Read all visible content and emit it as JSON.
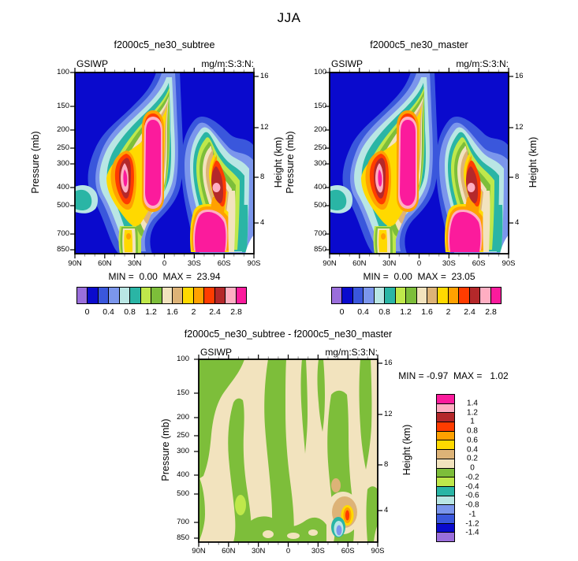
{
  "figure": {
    "title": "JJA"
  },
  "palette": {
    "colors": [
      "#9A6EDB",
      "#0A0ACD",
      "#3A57DC",
      "#7B96EC",
      "#B9E6E4",
      "#2AB5A5",
      "#BFE84B",
      "#7DBE3A",
      "#F2E3BE",
      "#DDB377",
      "#FFD900",
      "#FFA100",
      "#FF3C00",
      "#B4282A",
      "#FFAEC2",
      "#FB1B9C"
    ],
    "top_colorbar_labels": [
      "0",
      "0.4",
      "0.8",
      "1.2",
      "1.6",
      "2",
      "2.4",
      "2.8"
    ],
    "diff_colorbar_labels": [
      "1.4",
      "1.2",
      "1",
      "0.8",
      "0.6",
      "0.4",
      "0.2",
      "0",
      "-0.2",
      "-0.4",
      "-0.6",
      "-0.8",
      "-1",
      "-1.2",
      "-1.4"
    ]
  },
  "panels": [
    {
      "title": "f2000c5_ne30_subtree",
      "field": "GSIWP",
      "units": "mg/m:S:3:N:",
      "min_max": "MIN =  0.00  MAX =  23.94"
    },
    {
      "title": "f2000c5_ne30_master",
      "field": "GSIWP",
      "units": "mg/m:S:3:N:",
      "min_max": "MIN =  0.00  MAX =  23.05"
    },
    {
      "title": "f2000c5_ne30_subtree - f2000c5_ne30_master",
      "field": "GSIWP",
      "units": "mg/m:S:3:N:",
      "min_max": "MIN = -0.97  MAX =   1.02"
    }
  ],
  "axes": {
    "pressure_label": "Pressure (mb)",
    "height_label": "Height (km)",
    "pressure_ticks": [
      "100",
      "150",
      "200",
      "250",
      "300",
      "400",
      "500",
      "700",
      "850"
    ],
    "height_ticks": [
      "16",
      "12",
      "8",
      "4"
    ],
    "lat_ticks": [
      "90N",
      "60N",
      "30N",
      "0",
      "30S",
      "60S",
      "90S"
    ]
  },
  "chart_data": [
    {
      "type": "heatmap",
      "title": "f2000c5_ne30_subtree",
      "season": "JJA",
      "variable": "GSIWP",
      "units": "mg/m:S:3:N:",
      "x_ticks": [
        "90N",
        "60N",
        "30N",
        "0",
        "30S",
        "60S",
        "90S"
      ],
      "y_left_label": "Pressure (mb)",
      "y_left_ticks": [
        100,
        150,
        200,
        250,
        300,
        400,
        500,
        700,
        850
      ],
      "y_left_scale": "log",
      "y_right_label": "Height (km)",
      "y_right_ticks": [
        16,
        12,
        8,
        4
      ],
      "contour_levels": [
        0,
        0.2,
        0.4,
        0.6,
        0.8,
        1,
        1.2,
        1.4,
        1.6,
        1.8,
        2,
        2.2,
        2.4,
        2.6,
        2.8
      ],
      "min": 0.0,
      "max": 23.94,
      "legend_position": "bottom",
      "features": [
        "tropical maximum >2.8 centered near 5-15N between 200 and 500 mb",
        "secondary maximum >2.8 near 60N around 350-400 mb with dark-red ring",
        "southern storm-track maximum >2.8 near 40-65S below 600 mb",
        "dark-red core 2.4-2.6 near 55S around 400-500 mb with small pink center",
        "near-zero (dark blue) background above 150 mb and in the subtropical gap near 20S"
      ]
    },
    {
      "type": "heatmap",
      "title": "f2000c5_ne30_master",
      "season": "JJA",
      "variable": "GSIWP",
      "units": "mg/m:S:3:N:",
      "x_ticks": [
        "90N",
        "60N",
        "30N",
        "0",
        "30S",
        "60S",
        "90S"
      ],
      "y_left_label": "Pressure (mb)",
      "y_left_ticks": [
        100,
        150,
        200,
        250,
        300,
        400,
        500,
        700,
        850
      ],
      "y_left_scale": "log",
      "y_right_label": "Height (km)",
      "y_right_ticks": [
        16,
        12,
        8,
        4
      ],
      "contour_levels": [
        0,
        0.2,
        0.4,
        0.6,
        0.8,
        1,
        1.2,
        1.4,
        1.6,
        1.8,
        2,
        2.2,
        2.4,
        2.6,
        2.8
      ],
      "min": 0.0,
      "max": 23.05,
      "legend_position": "bottom",
      "features": [
        "pattern nearly identical to f2000c5_ne30_subtree",
        "tropical maximum >2.8 near 5-15N between 200 and 500 mb",
        "secondary maximum >2.8 near 60N around 350-400 mb",
        "southern maximum >2.8 near 40-65S below 600 mb"
      ]
    },
    {
      "type": "heatmap",
      "title": "f2000c5_ne30_subtree - f2000c5_ne30_master",
      "season": "JJA",
      "variable": "GSIWP",
      "units": "mg/m:S:3:N:",
      "x_ticks": [
        "90N",
        "60N",
        "30N",
        "0",
        "30S",
        "60S",
        "90S"
      ],
      "y_left_label": "Pressure (mb)",
      "y_left_ticks": [
        100,
        150,
        200,
        250,
        300,
        400,
        500,
        700,
        850
      ],
      "y_left_scale": "log",
      "y_right_label": "Height (km)",
      "y_right_ticks": [
        16,
        12,
        8,
        4
      ],
      "contour_levels": [
        -1.4,
        -1.2,
        -1,
        -0.8,
        -0.6,
        -0.4,
        -0.2,
        0,
        0.2,
        0.4,
        0.6,
        0.8,
        1,
        1.2,
        1.4
      ],
      "min": -0.97,
      "max": 1.02,
      "legend_position": "right",
      "features": [
        "differences mostly within -0.2 to +0.2 (alternating tan and green vertical bands)",
        "positive anomaly up to ~1.0 near 55S at 700-850 mb (orange/red spot)",
        "negative anomaly down to ~-1.0 near 50S at 850 mb (blue/teal spot)",
        "weak negative patch -0.2 to -0.4 near 60N around 600 mb"
      ]
    }
  ]
}
